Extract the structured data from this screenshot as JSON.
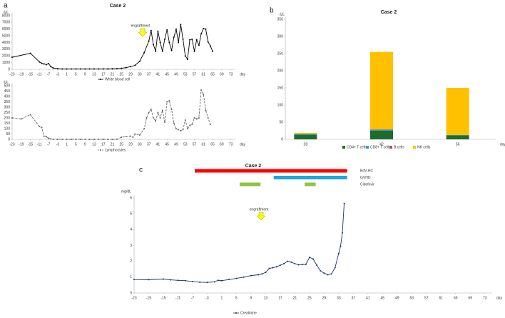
{
  "chart_data": [
    {
      "type": "line",
      "panel": "a",
      "title": "Case 2",
      "y_label": "/µL",
      "x_label": "day",
      "annotation": "engraftment",
      "xlim": [
        -23,
        75
      ],
      "xticks": [
        -23,
        -19,
        -15,
        -11,
        -7,
        -3,
        1,
        5,
        9,
        13,
        17,
        21,
        25,
        29,
        33,
        37,
        41,
        45,
        49,
        53,
        57,
        61,
        65,
        69,
        73
      ],
      "ylim": [
        0,
        8000
      ],
      "yticks": [
        0,
        1000,
        2000,
        3000,
        4000,
        5000,
        6000,
        7000,
        8000
      ],
      "series": [
        {
          "name": "White blood cell",
          "color": "#000000",
          "dash": false,
          "x": [
            -23,
            -15,
            -11,
            -10,
            -9,
            -8,
            -7,
            -6,
            -5,
            -3,
            -1,
            1,
            3,
            5,
            7,
            9,
            11,
            13,
            15,
            17,
            19,
            21,
            23,
            25,
            27,
            29,
            31,
            33,
            35,
            37,
            38,
            39,
            40,
            41,
            42,
            43,
            44,
            45,
            46,
            47,
            48,
            49,
            50,
            51,
            52,
            53,
            54,
            55,
            56,
            57,
            58,
            59,
            60,
            61,
            62,
            63,
            64,
            65
          ],
          "values": [
            1800,
            2400,
            1100,
            900,
            800,
            700,
            850,
            400,
            200,
            100,
            50,
            50,
            50,
            50,
            50,
            50,
            50,
            50,
            50,
            50,
            50,
            80,
            100,
            150,
            250,
            400,
            600,
            1200,
            2500,
            4200,
            5800,
            3700,
            2700,
            5700,
            4000,
            2700,
            4500,
            5900,
            4000,
            2800,
            4800,
            6000,
            4000,
            6700,
            4500,
            2000,
            1500,
            4400,
            4500,
            2700,
            4400,
            3600,
            5300,
            6100,
            6000,
            4100,
            3500,
            2700
          ]
        }
      ]
    },
    {
      "type": "line",
      "y_label": "/µL",
      "x_label": "day",
      "xlim": [
        -23,
        75
      ],
      "xticks": [
        -23,
        -19,
        -15,
        -11,
        -7,
        -3,
        1,
        5,
        9,
        13,
        17,
        21,
        25,
        29,
        33,
        37,
        41,
        45,
        49,
        53,
        57,
        61,
        65,
        69,
        73
      ],
      "ylim": [
        0,
        500
      ],
      "yticks": [
        0,
        50,
        100,
        150,
        200,
        250,
        300,
        350,
        400,
        450,
        500
      ],
      "series": [
        {
          "name": "Lymphocytes",
          "color": "#666666",
          "dash": true,
          "x": [
            -23,
            -19,
            -15,
            -11,
            -10,
            -9,
            -8,
            -7,
            -6,
            -5,
            -3,
            -1,
            1,
            3,
            5,
            7,
            9,
            11,
            13,
            15,
            17,
            19,
            21,
            23,
            25,
            27,
            29,
            30,
            31,
            33,
            35,
            36,
            37,
            38,
            39,
            40,
            41,
            42,
            43,
            44,
            45,
            46,
            47,
            48,
            49,
            50,
            51,
            52,
            53,
            54,
            55,
            56,
            57,
            58,
            59,
            60,
            61,
            62,
            63,
            64
          ],
          "values": [
            200,
            190,
            230,
            120,
            110,
            30,
            25,
            10,
            5,
            0,
            0,
            0,
            0,
            0,
            0,
            0,
            0,
            0,
            0,
            0,
            0,
            0,
            0,
            0,
            20,
            25,
            30,
            20,
            50,
            40,
            100,
            200,
            250,
            280,
            200,
            170,
            250,
            200,
            270,
            160,
            350,
            360,
            280,
            150,
            100,
            90,
            80,
            90,
            180,
            100,
            130,
            140,
            200,
            190,
            200,
            460,
            420,
            270,
            200,
            140
          ]
        }
      ]
    },
    {
      "type": "bar",
      "stacked": true,
      "panel": "b",
      "title": "Case 2",
      "y_label": "/µL",
      "x_label": "day",
      "categories": [
        "28",
        "42",
        "56"
      ],
      "ylim": [
        0,
        350
      ],
      "yticks": [
        0,
        50,
        100,
        150,
        200,
        250,
        300,
        350
      ],
      "series": [
        {
          "name": "CD4+ T cells",
          "color": "#1e6b2e",
          "values": [
            14,
            25,
            12
          ]
        },
        {
          "name": "CD8+ T cells",
          "color": "#2f9fd8",
          "values": [
            2,
            3,
            1
          ]
        },
        {
          "name": "B cells",
          "color": "#a64d79",
          "values": [
            0,
            1,
            0
          ]
        },
        {
          "name": "NK cells",
          "color": "#ffc000",
          "values": [
            3,
            226,
            137
          ]
        }
      ]
    },
    {
      "type": "line",
      "panel": "c",
      "title": "Case 2",
      "y_label": "mg/dL",
      "x_label": "day",
      "annotation": "engraftment",
      "xlim": [
        -23,
        75
      ],
      "xticks": [
        -23,
        -19,
        -15,
        -11,
        -7,
        -3,
        1,
        5,
        9,
        13,
        17,
        21,
        25,
        29,
        33,
        37,
        41,
        45,
        49,
        53,
        57,
        61,
        65,
        69,
        73
      ],
      "ylim": [
        0,
        6
      ],
      "yticks": [
        0,
        1,
        2,
        3,
        4,
        5,
        6
      ],
      "periods": [
        {
          "name": "BdV-HC",
          "color": "#ff0000",
          "ranges": [
            [
              -6.4,
              35.3
            ]
          ]
        },
        {
          "name": "GVHD",
          "color": "#1ea7dc",
          "ranges": [
            [
              15.2,
              35.3
            ]
          ]
        },
        {
          "name": "Cidofovir",
          "color": "#8cc63f",
          "ranges": [
            [
              5.9,
              11.6
            ],
            [
              23.7,
              26.7
            ]
          ]
        }
      ],
      "series": [
        {
          "name": "Creatinine",
          "color": "#1f2f7a",
          "dash": false,
          "x": [
            -23,
            -19,
            -15,
            -13,
            -11,
            -9,
            -7,
            -5,
            -3,
            -1,
            0,
            1,
            3,
            5,
            7,
            9,
            11,
            12,
            13,
            14,
            15,
            16,
            17,
            18,
            19,
            20,
            21,
            22,
            23,
            24,
            25,
            26,
            27,
            28,
            29,
            30,
            31,
            32,
            33,
            33.5,
            34,
            34.5
          ],
          "values": [
            0.85,
            0.84,
            0.88,
            0.83,
            0.8,
            0.78,
            0.72,
            0.68,
            0.67,
            0.7,
            0.8,
            0.78,
            0.85,
            0.92,
            1.0,
            1.1,
            1.15,
            1.2,
            1.3,
            1.55,
            1.6,
            1.65,
            1.75,
            1.85,
            2.0,
            1.95,
            1.85,
            1.78,
            1.8,
            1.8,
            2.25,
            2.15,
            1.75,
            1.4,
            1.25,
            1.15,
            1.2,
            1.6,
            2.5,
            2.95,
            3.8,
            5.65
          ]
        }
      ]
    }
  ]
}
